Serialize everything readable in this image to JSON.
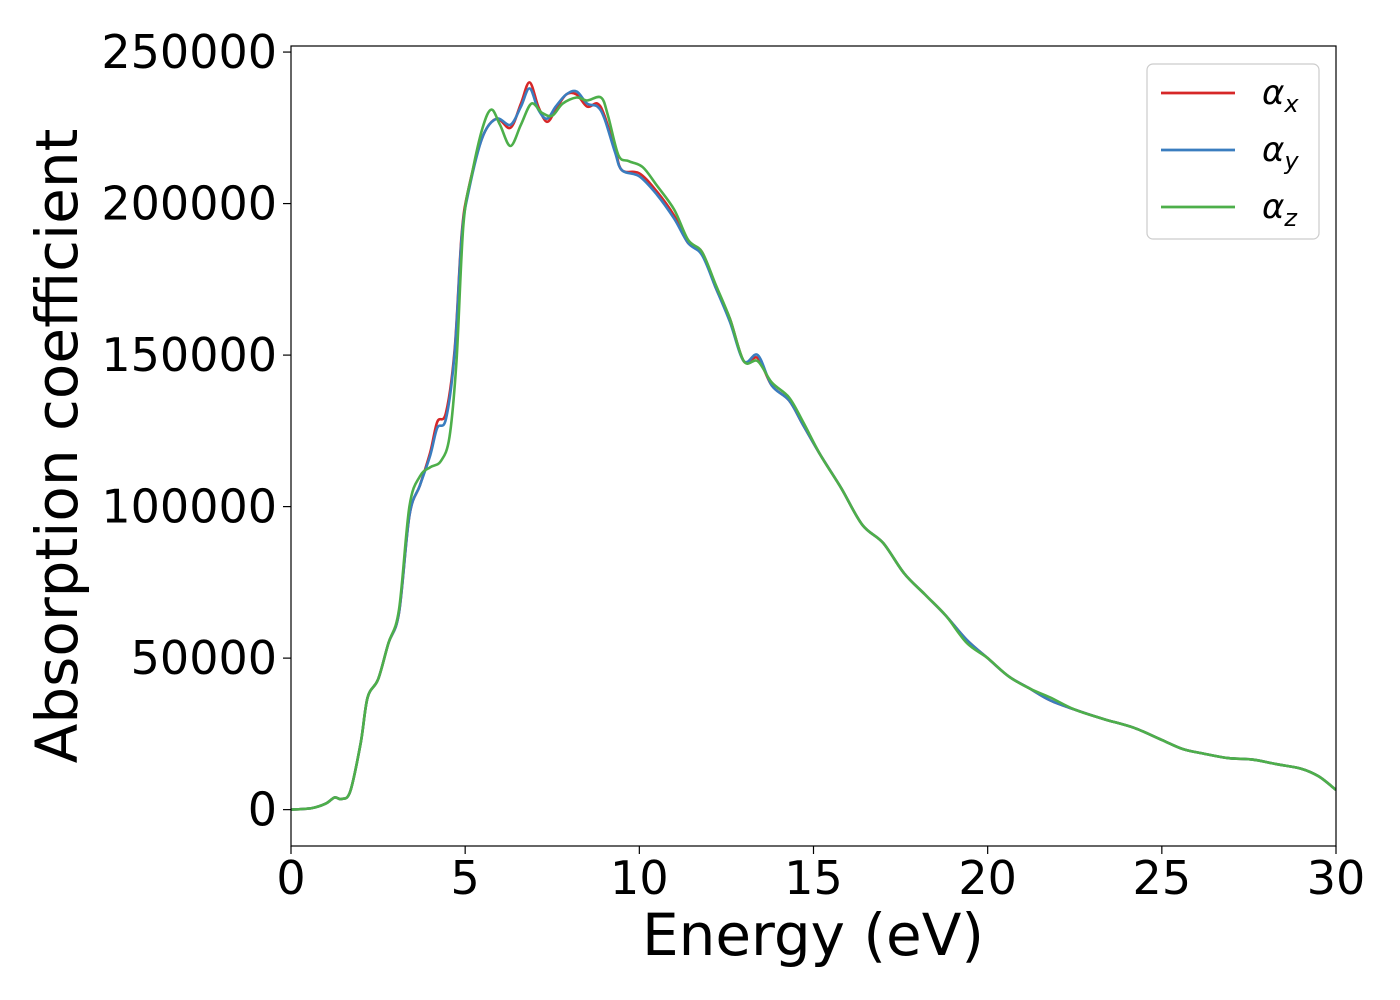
{
  "chart_data": {
    "type": "line",
    "title": "",
    "xlabel": "Energy (eV)",
    "ylabel": "Absorption coefficient",
    "xlim": [
      0,
      30
    ],
    "ylim": [
      -12000,
      252000
    ],
    "xticks": [
      0,
      5,
      10,
      15,
      20,
      25,
      30
    ],
    "xtick_labels": [
      "0",
      "5",
      "10",
      "15",
      "20",
      "25",
      "30"
    ],
    "yticks": [
      0,
      50000,
      100000,
      150000,
      200000,
      250000
    ],
    "ytick_labels": [
      "0",
      "50000",
      "100000",
      "150000",
      "200000",
      "250000"
    ],
    "grid": false,
    "legend_position": "top-right",
    "series": [
      {
        "name": "x",
        "legend_symbol": "α",
        "color": "#d62728",
        "points": [
          [
            0,
            0
          ],
          [
            0.6,
            500
          ],
          [
            1.0,
            2000
          ],
          [
            1.25,
            4000
          ],
          [
            1.45,
            3500
          ],
          [
            1.7,
            6000
          ],
          [
            2.0,
            22000
          ],
          [
            2.2,
            37000
          ],
          [
            2.5,
            43000
          ],
          [
            2.8,
            55000
          ],
          [
            3.1,
            65000
          ],
          [
            3.4,
            97000
          ],
          [
            3.7,
            107000
          ],
          [
            4.0,
            118000
          ],
          [
            4.2,
            128000
          ],
          [
            4.45,
            131000
          ],
          [
            4.7,
            152000
          ],
          [
            4.9,
            190000
          ],
          [
            5.1,
            205000
          ],
          [
            5.5,
            222000
          ],
          [
            5.9,
            228000
          ],
          [
            6.3,
            225000
          ],
          [
            6.6,
            233000
          ],
          [
            6.85,
            240000
          ],
          [
            7.1,
            232000
          ],
          [
            7.35,
            227000
          ],
          [
            7.6,
            231000
          ],
          [
            7.9,
            236000
          ],
          [
            8.2,
            236000
          ],
          [
            8.5,
            232000
          ],
          [
            8.8,
            233000
          ],
          [
            9.0,
            229000
          ],
          [
            9.3,
            218000
          ],
          [
            9.5,
            211000
          ],
          [
            10.0,
            210000
          ],
          [
            10.5,
            204000
          ],
          [
            11.0,
            196000
          ],
          [
            11.4,
            187000
          ],
          [
            11.8,
            184000
          ],
          [
            12.2,
            172000
          ],
          [
            12.6,
            162000
          ],
          [
            13.0,
            148000
          ],
          [
            13.4,
            149000
          ],
          [
            13.8,
            140000
          ],
          [
            14.3,
            135000
          ],
          [
            14.7,
            127000
          ],
          [
            15.2,
            117000
          ],
          [
            15.8,
            106000
          ],
          [
            16.4,
            94000
          ],
          [
            17.0,
            88000
          ],
          [
            17.6,
            78000
          ],
          [
            18.2,
            71000
          ],
          [
            18.8,
            64000
          ],
          [
            19.4,
            56000
          ],
          [
            20.0,
            50000
          ],
          [
            20.6,
            44000
          ],
          [
            21.2,
            40000
          ],
          [
            21.8,
            36000
          ],
          [
            22.5,
            33000
          ],
          [
            23.3,
            30000
          ],
          [
            24.2,
            27000
          ],
          [
            25.0,
            23000
          ],
          [
            25.6,
            20000
          ],
          [
            26.2,
            18500
          ],
          [
            26.9,
            17000
          ],
          [
            27.6,
            16500
          ],
          [
            28.3,
            15000
          ],
          [
            29.0,
            13500
          ],
          [
            29.5,
            11000
          ],
          [
            30,
            6500
          ]
        ]
      },
      {
        "name": "y",
        "legend_symbol": "α",
        "color": "#3a7dbf",
        "points": [
          [
            0,
            0
          ],
          [
            0.6,
            500
          ],
          [
            1.0,
            2000
          ],
          [
            1.25,
            4000
          ],
          [
            1.45,
            3500
          ],
          [
            1.7,
            6000
          ],
          [
            2.0,
            22000
          ],
          [
            2.2,
            37000
          ],
          [
            2.5,
            43000
          ],
          [
            2.8,
            55000
          ],
          [
            3.1,
            65000
          ],
          [
            3.4,
            97000
          ],
          [
            3.7,
            107000
          ],
          [
            4.0,
            117000
          ],
          [
            4.2,
            126000
          ],
          [
            4.45,
            129000
          ],
          [
            4.7,
            151000
          ],
          [
            4.9,
            189000
          ],
          [
            5.1,
            204000
          ],
          [
            5.5,
            222000
          ],
          [
            5.9,
            228000
          ],
          [
            6.3,
            226000
          ],
          [
            6.6,
            232000
          ],
          [
            6.85,
            238000
          ],
          [
            7.1,
            231000
          ],
          [
            7.35,
            228000
          ],
          [
            7.6,
            232000
          ],
          [
            7.9,
            236000
          ],
          [
            8.2,
            237000
          ],
          [
            8.5,
            233000
          ],
          [
            8.8,
            232000
          ],
          [
            9.0,
            228000
          ],
          [
            9.3,
            217000
          ],
          [
            9.5,
            211000
          ],
          [
            10.0,
            209000
          ],
          [
            10.5,
            203000
          ],
          [
            11.0,
            195000
          ],
          [
            11.4,
            187000
          ],
          [
            11.8,
            183000
          ],
          [
            12.2,
            172000
          ],
          [
            12.6,
            161000
          ],
          [
            13.0,
            148000
          ],
          [
            13.4,
            150000
          ],
          [
            13.8,
            140000
          ],
          [
            14.3,
            135000
          ],
          [
            14.7,
            127000
          ],
          [
            15.2,
            117000
          ],
          [
            15.8,
            106000
          ],
          [
            16.4,
            94000
          ],
          [
            17.0,
            88000
          ],
          [
            17.6,
            78000
          ],
          [
            18.2,
            71000
          ],
          [
            18.8,
            64000
          ],
          [
            19.4,
            56000
          ],
          [
            20.0,
            50000
          ],
          [
            20.6,
            44000
          ],
          [
            21.2,
            40000
          ],
          [
            21.8,
            36000
          ],
          [
            22.5,
            33000
          ],
          [
            23.3,
            30000
          ],
          [
            24.2,
            27000
          ],
          [
            25.0,
            23000
          ],
          [
            25.6,
            20000
          ],
          [
            26.2,
            18500
          ],
          [
            26.9,
            17000
          ],
          [
            27.6,
            16500
          ],
          [
            28.3,
            15000
          ],
          [
            29.0,
            13500
          ],
          [
            29.5,
            11000
          ],
          [
            30,
            6500
          ]
        ]
      },
      {
        "name": "z",
        "legend_symbol": "α",
        "color": "#4daf4a",
        "points": [
          [
            0,
            0
          ],
          [
            0.6,
            500
          ],
          [
            1.0,
            2000
          ],
          [
            1.25,
            4000
          ],
          [
            1.45,
            3500
          ],
          [
            1.7,
            6000
          ],
          [
            2.0,
            22000
          ],
          [
            2.2,
            37000
          ],
          [
            2.5,
            43000
          ],
          [
            2.8,
            55000
          ],
          [
            3.1,
            66000
          ],
          [
            3.4,
            100000
          ],
          [
            3.7,
            110000
          ],
          [
            4.0,
            113000
          ],
          [
            4.3,
            115000
          ],
          [
            4.55,
            123000
          ],
          [
            4.75,
            148000
          ],
          [
            4.95,
            193000
          ],
          [
            5.2,
            210000
          ],
          [
            5.5,
            225000
          ],
          [
            5.75,
            231000
          ],
          [
            6.0,
            226000
          ],
          [
            6.3,
            219000
          ],
          [
            6.6,
            226000
          ],
          [
            6.9,
            233000
          ],
          [
            7.2,
            230000
          ],
          [
            7.5,
            229000
          ],
          [
            7.8,
            233000
          ],
          [
            8.2,
            235000
          ],
          [
            8.5,
            234000
          ],
          [
            8.9,
            235000
          ],
          [
            9.1,
            229000
          ],
          [
            9.4,
            216000
          ],
          [
            9.7,
            214000
          ],
          [
            10.1,
            212000
          ],
          [
            10.5,
            206000
          ],
          [
            11.0,
            198000
          ],
          [
            11.4,
            188000
          ],
          [
            11.8,
            184000
          ],
          [
            12.2,
            173000
          ],
          [
            12.6,
            162000
          ],
          [
            13.0,
            148000
          ],
          [
            13.4,
            148000
          ],
          [
            13.8,
            141000
          ],
          [
            14.3,
            136000
          ],
          [
            14.7,
            128000
          ],
          [
            15.2,
            117000
          ],
          [
            15.8,
            106000
          ],
          [
            16.4,
            94000
          ],
          [
            17.0,
            88000
          ],
          [
            17.6,
            78000
          ],
          [
            18.2,
            71000
          ],
          [
            18.8,
            64000
          ],
          [
            19.4,
            55000
          ],
          [
            20.0,
            50000
          ],
          [
            20.6,
            44000
          ],
          [
            21.2,
            40000
          ],
          [
            21.8,
            37000
          ],
          [
            22.5,
            33000
          ],
          [
            23.3,
            30000
          ],
          [
            24.2,
            27000
          ],
          [
            25.0,
            23000
          ],
          [
            25.6,
            20000
          ],
          [
            26.2,
            18500
          ],
          [
            26.9,
            17000
          ],
          [
            27.6,
            16500
          ],
          [
            28.3,
            15000
          ],
          [
            29.0,
            13500
          ],
          [
            29.5,
            11000
          ],
          [
            30,
            6500
          ]
        ]
      }
    ]
  }
}
